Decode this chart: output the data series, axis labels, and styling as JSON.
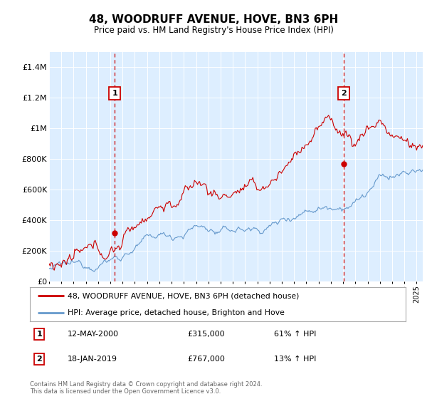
{
  "title": "48, WOODRUFF AVENUE, HOVE, BN3 6PH",
  "subtitle": "Price paid vs. HM Land Registry's House Price Index (HPI)",
  "ylabel_ticks": [
    "£0",
    "£200K",
    "£400K",
    "£600K",
    "£800K",
    "£1M",
    "£1.2M",
    "£1.4M"
  ],
  "ytick_values": [
    0,
    200000,
    400000,
    600000,
    800000,
    1000000,
    1200000,
    1400000
  ],
  "ylim": [
    0,
    1500000
  ],
  "xlim_start": 1995.0,
  "xlim_end": 2025.5,
  "sale1_x": 2000.36,
  "sale1_y": 315000,
  "sale2_x": 2019.05,
  "sale2_y": 767000,
  "legend_line1": "48, WOODRUFF AVENUE, HOVE, BN3 6PH (detached house)",
  "legend_line2": "HPI: Average price, detached house, Brighton and Hove",
  "annotation1_label": "1",
  "annotation1_date": "12-MAY-2000",
  "annotation1_price": "£315,000",
  "annotation1_hpi": "61% ↑ HPI",
  "annotation2_label": "2",
  "annotation2_date": "18-JAN-2019",
  "annotation2_price": "£767,000",
  "annotation2_hpi": "13% ↑ HPI",
  "footer": "Contains HM Land Registry data © Crown copyright and database right 2024.\nThis data is licensed under the Open Government Licence v3.0.",
  "line_color_red": "#cc0000",
  "line_color_blue": "#6699cc",
  "background_color": "#ddeeff",
  "grid_color": "#ccddee",
  "vline_color": "#cc0000"
}
